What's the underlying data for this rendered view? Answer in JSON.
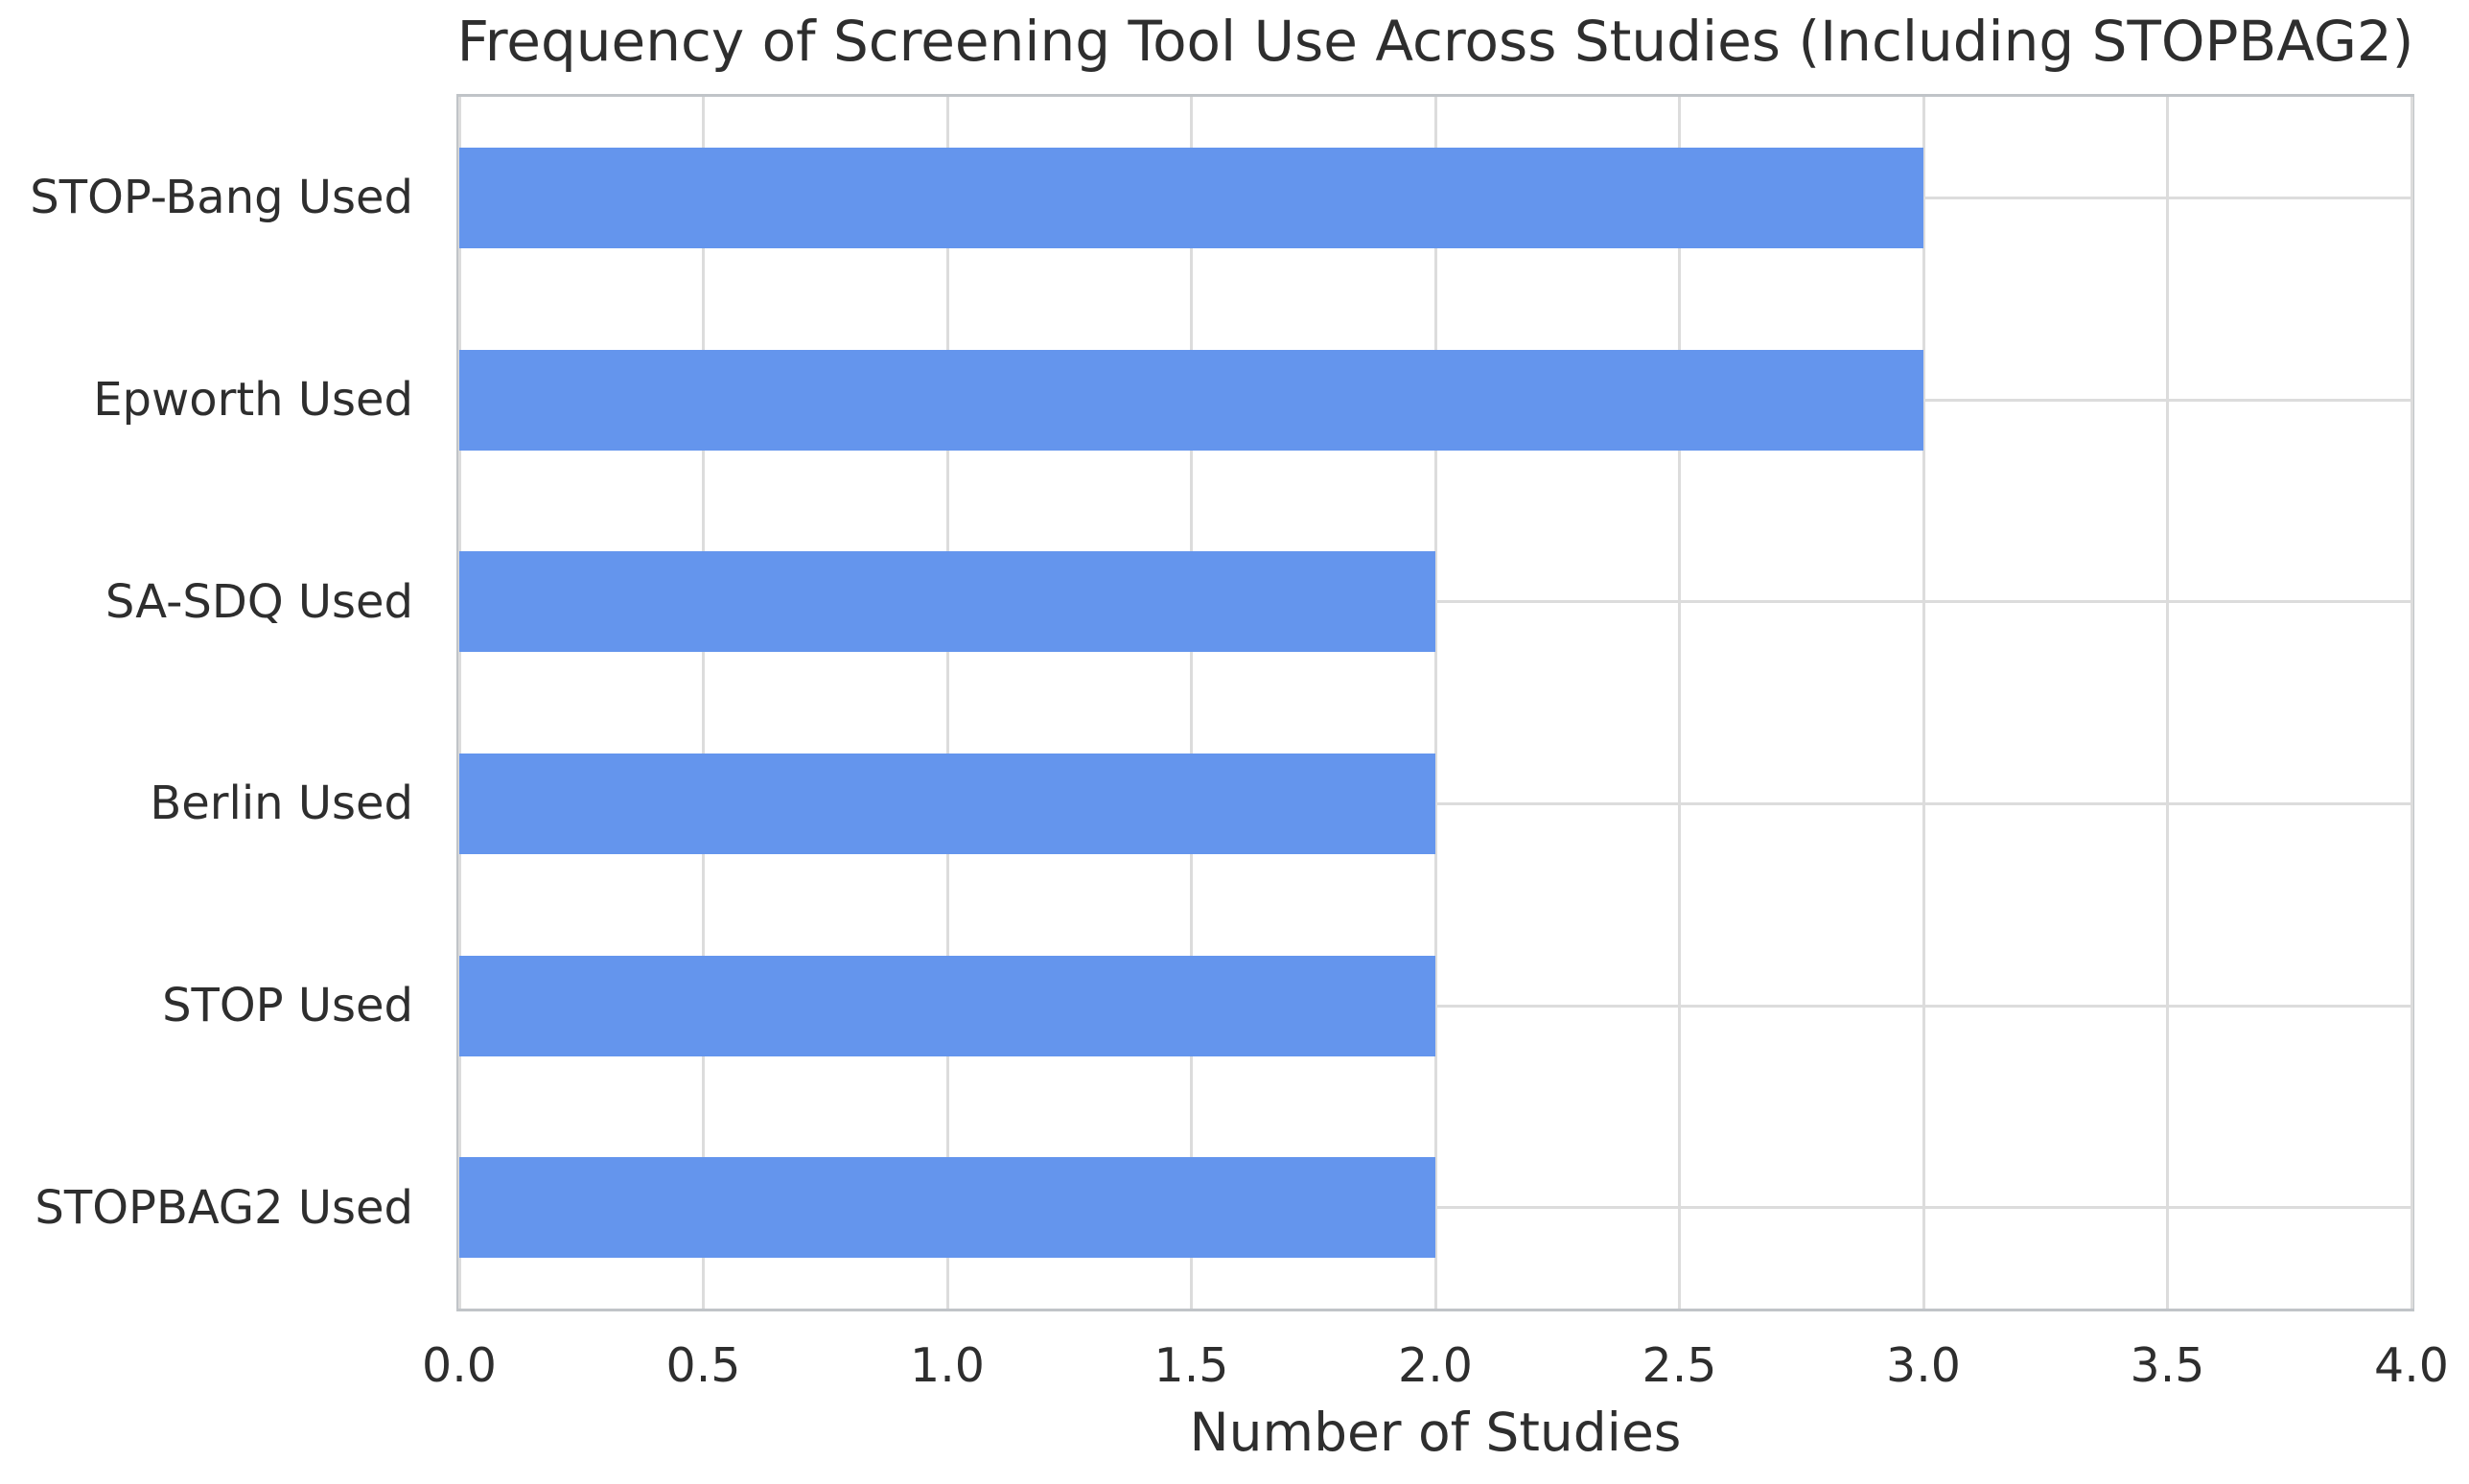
{
  "chart_data": {
    "type": "bar",
    "orientation": "horizontal",
    "title": "Frequency of Screening Tool Use Across Studies (Including STOPBAG2)",
    "categories": [
      "STOP-Bang Used",
      "Epworth Used",
      "SA-SDQ Used",
      "Berlin Used",
      "STOP Used",
      "STOPBAG2 Used"
    ],
    "values": [
      3,
      3,
      2,
      2,
      2,
      2
    ],
    "xlabel": "Number of Studies",
    "ylabel": "",
    "xlim": [
      0,
      4
    ],
    "xticks": [
      0,
      0.5,
      1,
      1.5,
      2,
      2.5,
      3,
      3.5,
      4
    ],
    "xtick_labels": [
      "0.0",
      "0.5",
      "1.0",
      "1.5",
      "2.0",
      "2.5",
      "3.0",
      "3.5",
      "4.0"
    ],
    "grid": true,
    "legend": false,
    "colors": {
      "bar": "#6495ed",
      "grid": "#dcdcdc",
      "spine": "#c0c4c8",
      "text": "#2e2e2e",
      "background": "#ffffff"
    }
  }
}
